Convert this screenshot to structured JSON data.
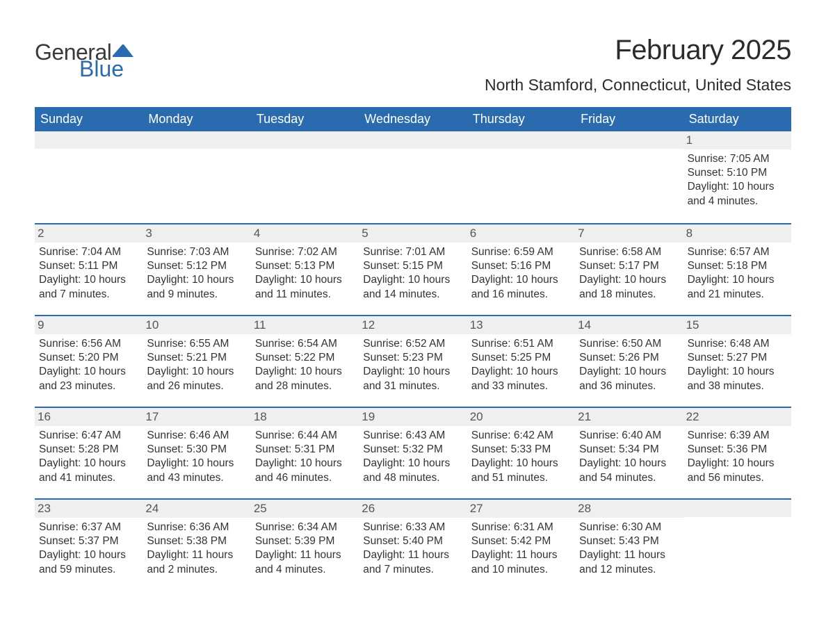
{
  "brand": {
    "line1": "General",
    "line2": "Blue"
  },
  "title": "February 2025",
  "location": "North Stamford, Connecticut, United States",
  "colors": {
    "header_bg": "#2a6bb0",
    "header_text": "#ffffff",
    "daynum_bg": "#efefef",
    "border": "#2a6bb0",
    "text": "#333333",
    "brand_blue": "#2a6bb0"
  },
  "weekdays": [
    "Sunday",
    "Monday",
    "Tuesday",
    "Wednesday",
    "Thursday",
    "Friday",
    "Saturday"
  ],
  "weeks": [
    [
      null,
      null,
      null,
      null,
      null,
      null,
      {
        "day": "1",
        "sunrise": "Sunrise: 7:05 AM",
        "sunset": "Sunset: 5:10 PM",
        "daylight": "Daylight: 10 hours and 4 minutes."
      }
    ],
    [
      {
        "day": "2",
        "sunrise": "Sunrise: 7:04 AM",
        "sunset": "Sunset: 5:11 PM",
        "daylight": "Daylight: 10 hours and 7 minutes."
      },
      {
        "day": "3",
        "sunrise": "Sunrise: 7:03 AM",
        "sunset": "Sunset: 5:12 PM",
        "daylight": "Daylight: 10 hours and 9 minutes."
      },
      {
        "day": "4",
        "sunrise": "Sunrise: 7:02 AM",
        "sunset": "Sunset: 5:13 PM",
        "daylight": "Daylight: 10 hours and 11 minutes."
      },
      {
        "day": "5",
        "sunrise": "Sunrise: 7:01 AM",
        "sunset": "Sunset: 5:15 PM",
        "daylight": "Daylight: 10 hours and 14 minutes."
      },
      {
        "day": "6",
        "sunrise": "Sunrise: 6:59 AM",
        "sunset": "Sunset: 5:16 PM",
        "daylight": "Daylight: 10 hours and 16 minutes."
      },
      {
        "day": "7",
        "sunrise": "Sunrise: 6:58 AM",
        "sunset": "Sunset: 5:17 PM",
        "daylight": "Daylight: 10 hours and 18 minutes."
      },
      {
        "day": "8",
        "sunrise": "Sunrise: 6:57 AM",
        "sunset": "Sunset: 5:18 PM",
        "daylight": "Daylight: 10 hours and 21 minutes."
      }
    ],
    [
      {
        "day": "9",
        "sunrise": "Sunrise: 6:56 AM",
        "sunset": "Sunset: 5:20 PM",
        "daylight": "Daylight: 10 hours and 23 minutes."
      },
      {
        "day": "10",
        "sunrise": "Sunrise: 6:55 AM",
        "sunset": "Sunset: 5:21 PM",
        "daylight": "Daylight: 10 hours and 26 minutes."
      },
      {
        "day": "11",
        "sunrise": "Sunrise: 6:54 AM",
        "sunset": "Sunset: 5:22 PM",
        "daylight": "Daylight: 10 hours and 28 minutes."
      },
      {
        "day": "12",
        "sunrise": "Sunrise: 6:52 AM",
        "sunset": "Sunset: 5:23 PM",
        "daylight": "Daylight: 10 hours and 31 minutes."
      },
      {
        "day": "13",
        "sunrise": "Sunrise: 6:51 AM",
        "sunset": "Sunset: 5:25 PM",
        "daylight": "Daylight: 10 hours and 33 minutes."
      },
      {
        "day": "14",
        "sunrise": "Sunrise: 6:50 AM",
        "sunset": "Sunset: 5:26 PM",
        "daylight": "Daylight: 10 hours and 36 minutes."
      },
      {
        "day": "15",
        "sunrise": "Sunrise: 6:48 AM",
        "sunset": "Sunset: 5:27 PM",
        "daylight": "Daylight: 10 hours and 38 minutes."
      }
    ],
    [
      {
        "day": "16",
        "sunrise": "Sunrise: 6:47 AM",
        "sunset": "Sunset: 5:28 PM",
        "daylight": "Daylight: 10 hours and 41 minutes."
      },
      {
        "day": "17",
        "sunrise": "Sunrise: 6:46 AM",
        "sunset": "Sunset: 5:30 PM",
        "daylight": "Daylight: 10 hours and 43 minutes."
      },
      {
        "day": "18",
        "sunrise": "Sunrise: 6:44 AM",
        "sunset": "Sunset: 5:31 PM",
        "daylight": "Daylight: 10 hours and 46 minutes."
      },
      {
        "day": "19",
        "sunrise": "Sunrise: 6:43 AM",
        "sunset": "Sunset: 5:32 PM",
        "daylight": "Daylight: 10 hours and 48 minutes."
      },
      {
        "day": "20",
        "sunrise": "Sunrise: 6:42 AM",
        "sunset": "Sunset: 5:33 PM",
        "daylight": "Daylight: 10 hours and 51 minutes."
      },
      {
        "day": "21",
        "sunrise": "Sunrise: 6:40 AM",
        "sunset": "Sunset: 5:34 PM",
        "daylight": "Daylight: 10 hours and 54 minutes."
      },
      {
        "day": "22",
        "sunrise": "Sunrise: 6:39 AM",
        "sunset": "Sunset: 5:36 PM",
        "daylight": "Daylight: 10 hours and 56 minutes."
      }
    ],
    [
      {
        "day": "23",
        "sunrise": "Sunrise: 6:37 AM",
        "sunset": "Sunset: 5:37 PM",
        "daylight": "Daylight: 10 hours and 59 minutes."
      },
      {
        "day": "24",
        "sunrise": "Sunrise: 6:36 AM",
        "sunset": "Sunset: 5:38 PM",
        "daylight": "Daylight: 11 hours and 2 minutes."
      },
      {
        "day": "25",
        "sunrise": "Sunrise: 6:34 AM",
        "sunset": "Sunset: 5:39 PM",
        "daylight": "Daylight: 11 hours and 4 minutes."
      },
      {
        "day": "26",
        "sunrise": "Sunrise: 6:33 AM",
        "sunset": "Sunset: 5:40 PM",
        "daylight": "Daylight: 11 hours and 7 minutes."
      },
      {
        "day": "27",
        "sunrise": "Sunrise: 6:31 AM",
        "sunset": "Sunset: 5:42 PM",
        "daylight": "Daylight: 11 hours and 10 minutes."
      },
      {
        "day": "28",
        "sunrise": "Sunrise: 6:30 AM",
        "sunset": "Sunset: 5:43 PM",
        "daylight": "Daylight: 11 hours and 12 minutes."
      },
      null
    ]
  ]
}
